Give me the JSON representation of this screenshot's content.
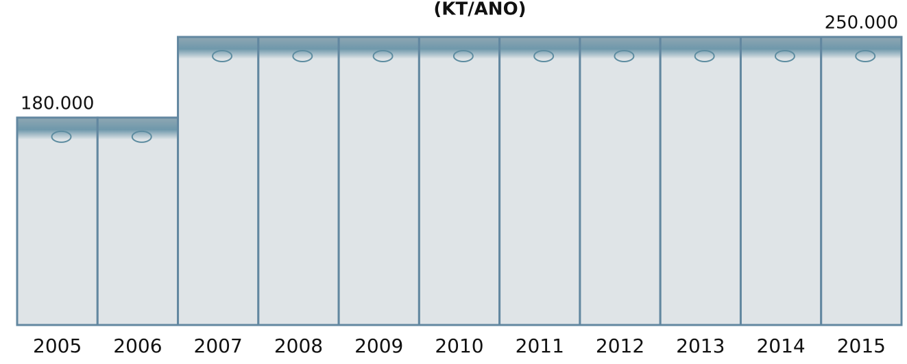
{
  "chart_data": {
    "type": "bar",
    "title": "(KT/ANO)",
    "categories": [
      "2005",
      "2006",
      "2007",
      "2008",
      "2009",
      "2010",
      "2011",
      "2012",
      "2013",
      "2014",
      "2015"
    ],
    "values": [
      180000,
      180000,
      250000,
      250000,
      250000,
      250000,
      250000,
      250000,
      250000,
      250000,
      250000
    ],
    "value_labels": [
      "180.000",
      null,
      null,
      null,
      null,
      null,
      null,
      null,
      null,
      null,
      "250.000"
    ],
    "color": "#dfe4e7",
    "ylim": [
      0,
      250000
    ]
  }
}
